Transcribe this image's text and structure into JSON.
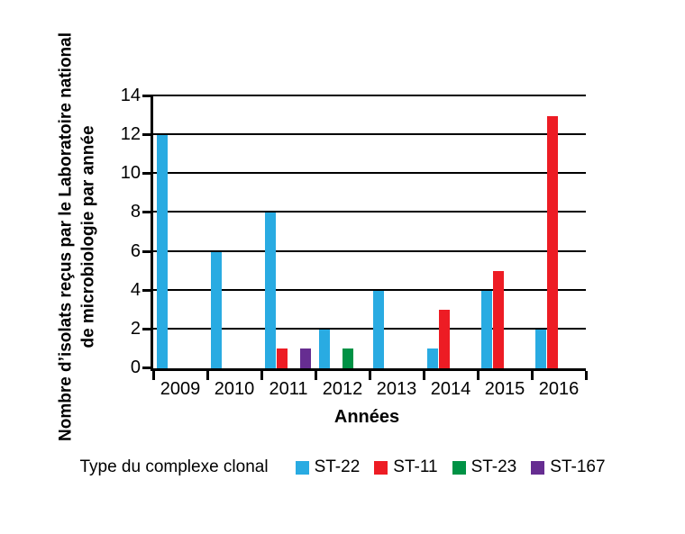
{
  "chart_data": {
    "type": "bar",
    "categories": [
      "2009",
      "2010",
      "2011",
      "2012",
      "2013",
      "2014",
      "2015",
      "2016"
    ],
    "series": [
      {
        "name": "ST-22",
        "color": "#29ABE2",
        "values": [
          12,
          6,
          8,
          2,
          4,
          1,
          4,
          2
        ]
      },
      {
        "name": "ST-11",
        "color": "#ED1C24",
        "values": [
          0,
          0,
          1,
          0,
          0,
          3,
          5,
          13
        ]
      },
      {
        "name": "ST-23",
        "color": "#009245",
        "values": [
          0,
          0,
          0,
          1,
          0,
          0,
          0,
          0
        ]
      },
      {
        "name": "ST-167",
        "color": "#662D91",
        "values": [
          0,
          0,
          1,
          0,
          0,
          0,
          0,
          0
        ]
      }
    ],
    "xlabel": "Années",
    "ylabel_lines": [
      "Nombre d’isolats reçus par le Laboratoire national",
      "de microbiologie par année"
    ],
    "ylim": [
      0,
      14
    ],
    "ytick_step": 2,
    "yticks": [
      "0",
      "2",
      "4",
      "6",
      "8",
      "10",
      "12",
      "14"
    ],
    "grid": "horizontal",
    "gridline_color": "#000000",
    "background_color": "#FFFFFF",
    "legend": {
      "title": "Type du complexe clonal",
      "position": "bottom",
      "items": [
        "ST-22",
        "ST-11",
        "ST-23",
        "ST-167"
      ]
    }
  }
}
